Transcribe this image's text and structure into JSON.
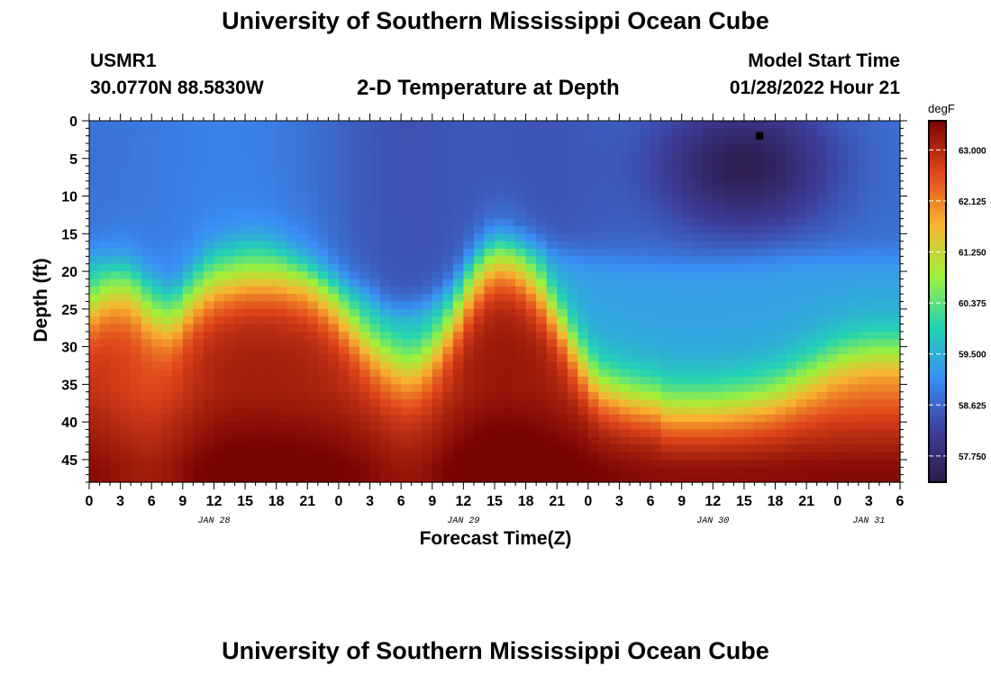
{
  "header": {
    "title": "University of Southern Mississippi Ocean Cube",
    "station_id": "USMR1",
    "coordinates": "30.0770N  88.5830W",
    "plot_title": "2-D Temperature at Depth",
    "model_start_label": "Model Start Time",
    "model_start_value": "01/28/2022 Hour 21"
  },
  "footer": {
    "title": "University of Southern Mississippi Ocean Cube"
  },
  "colors": {
    "colormap": [
      "#2d1a4a",
      "#3d3f9c",
      "#3a8ef5",
      "#23d3b4",
      "#9ff13a",
      "#f9b330",
      "#e0461b",
      "#7a0403"
    ]
  },
  "chart_data": {
    "type": "heatmap",
    "title": "2-D Temperature at Depth",
    "xlabel": "Forecast Time(Z)",
    "ylabel": "Depth (ft)",
    "x_range_hours": [
      0,
      78
    ],
    "x_tick_labels": [
      "0",
      "3",
      "6",
      "9",
      "12",
      "15",
      "18",
      "21",
      "0",
      "3",
      "6",
      "9",
      "12",
      "15",
      "18",
      "21",
      "0",
      "3",
      "6",
      "9",
      "12",
      "15",
      "18",
      "21",
      "0",
      "3",
      "6"
    ],
    "date_labels": [
      {
        "label": "JAN 28",
        "hour": 12
      },
      {
        "label": "JAN 29",
        "hour": 36
      },
      {
        "label": "JAN 30",
        "hour": 60
      },
      {
        "label": "JAN 31",
        "hour": 75
      }
    ],
    "y_range": [
      0,
      48
    ],
    "y_ticks": [
      0,
      5,
      10,
      15,
      20,
      25,
      30,
      35,
      40,
      45
    ],
    "colorbar": {
      "unit": "degF",
      "min": 57.3,
      "max": 63.5,
      "tick_labels": [
        "63.000",
        "62.125",
        "61.250",
        "60.375",
        "59.500",
        "58.625",
        "57.750"
      ],
      "tick_values": [
        63.0,
        62.125,
        61.25,
        60.375,
        59.5,
        58.625,
        57.75
      ]
    },
    "marker": {
      "hour": 64.5,
      "depth": 2
    },
    "isotherm_depth_ft": [
      [
        0,
        18
      ],
      [
        2,
        19
      ],
      [
        4,
        19.5
      ],
      [
        6,
        21
      ],
      [
        8,
        23
      ],
      [
        10,
        20
      ],
      [
        12,
        17
      ],
      [
        15,
        16
      ],
      [
        17,
        16
      ],
      [
        19,
        18
      ],
      [
        21,
        20
      ],
      [
        23,
        21
      ],
      [
        25,
        22
      ],
      [
        27,
        23
      ],
      [
        29,
        25
      ],
      [
        31,
        25
      ],
      [
        33,
        24
      ],
      [
        35,
        22
      ],
      [
        37,
        18
      ],
      [
        39,
        16
      ],
      [
        41,
        16.5
      ],
      [
        43,
        17
      ],
      [
        45,
        17.5
      ],
      [
        48,
        18
      ],
      [
        52,
        18.5
      ],
      [
        56,
        19
      ],
      [
        60,
        19
      ],
      [
        64,
        18.5
      ],
      [
        68,
        18
      ],
      [
        72,
        18
      ],
      [
        75,
        18
      ],
      [
        78,
        18
      ]
    ],
    "warm_depth_ft": [
      [
        0,
        25
      ],
      [
        2,
        23
      ],
      [
        4,
        23
      ],
      [
        6,
        26
      ],
      [
        8,
        27
      ],
      [
        10,
        24
      ],
      [
        12,
        22
      ],
      [
        15,
        21
      ],
      [
        18,
        21
      ],
      [
        21,
        22
      ],
      [
        23,
        24
      ],
      [
        25,
        27
      ],
      [
        27,
        30
      ],
      [
        29,
        32
      ],
      [
        31,
        33
      ],
      [
        33,
        31
      ],
      [
        35,
        27
      ],
      [
        37,
        22
      ],
      [
        39,
        19
      ],
      [
        41,
        19.5
      ],
      [
        43,
        22
      ],
      [
        45,
        26
      ],
      [
        47,
        31
      ],
      [
        49,
        35
      ],
      [
        52,
        36.5
      ],
      [
        56,
        37.5
      ],
      [
        60,
        37.5
      ],
      [
        63,
        37
      ],
      [
        66,
        36
      ],
      [
        69,
        34
      ],
      [
        72,
        32
      ],
      [
        75,
        31
      ],
      [
        78,
        31
      ]
    ]
  }
}
